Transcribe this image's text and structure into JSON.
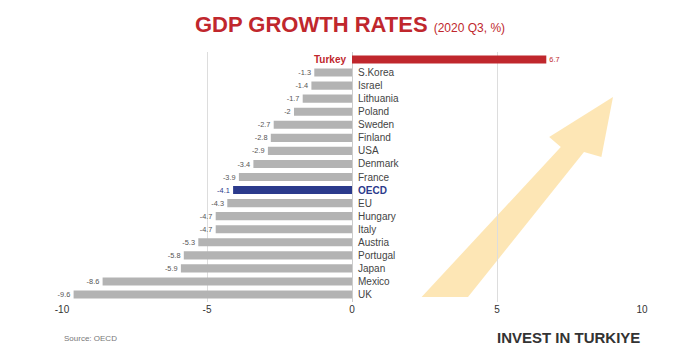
{
  "chart_data": {
    "type": "bar",
    "orientation": "horizontal",
    "title": "GDP GROWTH RATES",
    "subtitle": "(2020 Q3, %)",
    "categories": [
      "Turkey",
      "S.Korea",
      "Israel",
      "Lithuania",
      "Poland",
      "Sweden",
      "Finland",
      "USA",
      "Denmark",
      "France",
      "OECD",
      "EU",
      "Hungary",
      "Italy",
      "Austria",
      "Portugal",
      "Japan",
      "Mexico",
      "UK"
    ],
    "values": [
      6.7,
      -1.3,
      -1.4,
      -1.7,
      -2,
      -2.7,
      -2.8,
      -2.9,
      -3.4,
      -3.9,
      -4.1,
      -4.3,
      -4.7,
      -4.7,
      -5.3,
      -5.8,
      -5.9,
      -8.6,
      -9.6
    ],
    "color": "#b3b3b3",
    "colors": [
      "#c0272d",
      "#b3b3b3",
      "#b3b3b3",
      "#b3b3b3",
      "#b3b3b3",
      "#b3b3b3",
      "#b3b3b3",
      "#b3b3b3",
      "#b3b3b3",
      "#b3b3b3",
      "#2b3a8c",
      "#b3b3b3",
      "#b3b3b3",
      "#b3b3b3",
      "#b3b3b3",
      "#b3b3b3",
      "#b3b3b3",
      "#b3b3b3",
      "#b3b3b3"
    ],
    "xlim": [
      -10,
      10
    ],
    "xticks": [
      -10,
      -5,
      0,
      5,
      10
    ],
    "grid": true,
    "data_labels": true,
    "tick_labels": "x",
    "annotations": [
      "Source: OECD",
      "INVEST IN TURKIYE"
    ]
  }
}
